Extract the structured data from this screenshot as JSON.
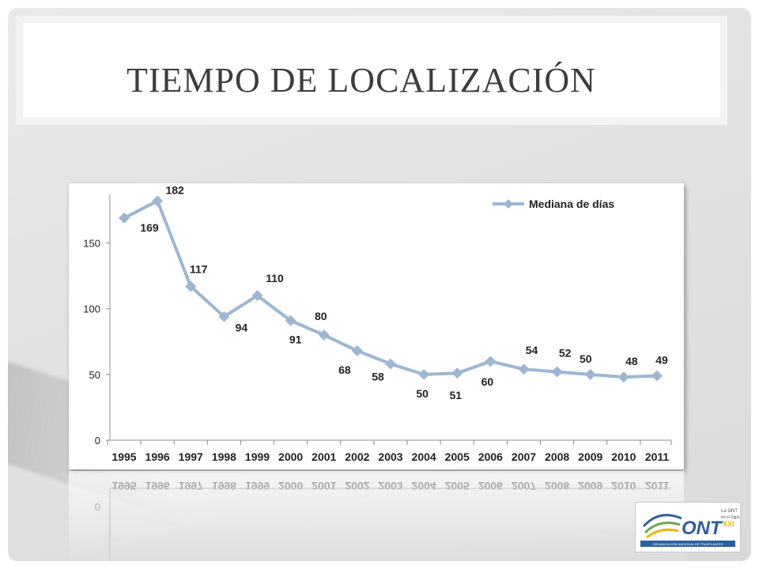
{
  "slide": {
    "title": "TIEMPO DE LOCALIZACIÓN"
  },
  "chart_data": {
    "type": "line",
    "title": "",
    "xlabel": "",
    "ylabel": "",
    "categories": [
      "1995",
      "1996",
      "1997",
      "1998",
      "1999",
      "2000",
      "2001",
      "2002",
      "2003",
      "2004",
      "2005",
      "2006",
      "2007",
      "2008",
      "2009",
      "2010",
      "2011"
    ],
    "series": [
      {
        "name": "Mediana de días",
        "values": [
          169,
          182,
          117,
          94,
          110,
          91,
          80,
          68,
          58,
          50,
          51,
          60,
          54,
          52,
          50,
          48,
          49
        ],
        "color": "#9bb7d4"
      }
    ],
    "y_ticks": [
      0,
      50,
      100,
      150
    ],
    "ylim": [
      0,
      182
    ],
    "legend": "top-right",
    "grid": false
  },
  "logo": {
    "text": "ONT",
    "tagline_top": "La ONT",
    "tagline_mid": "en el Siglo",
    "tagline_bottom": "XXI",
    "caption": "ORGANIZACIÓN NACIONAL DE TRASPLANTES",
    "brand_color": "#2e5f9e",
    "accent_color": "#f2b400"
  }
}
